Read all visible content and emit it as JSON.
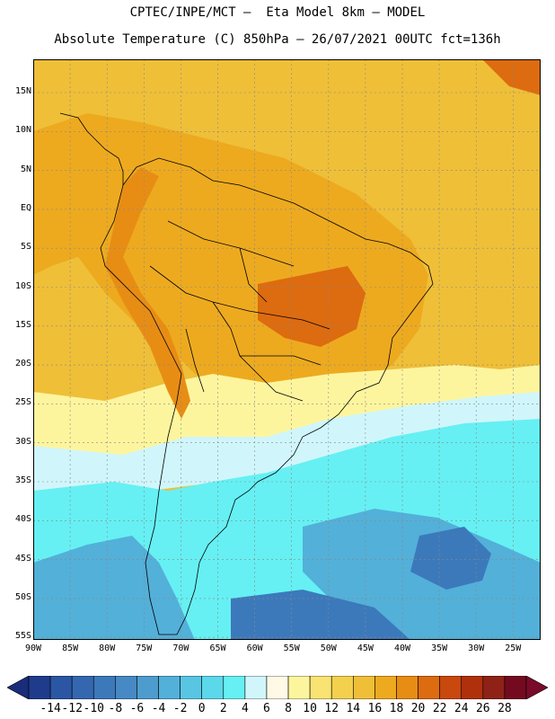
{
  "title": {
    "line1": "CPTEC/INPE/MCT —  Eta Model 8km — MODEL",
    "line2": "Absolute Temperature (C) 850hPa — 26/07/2021 00UTC fct=136h"
  },
  "lat_labels": [
    "15N",
    "10N",
    "5N",
    "EQ",
    "5S",
    "10S",
    "15S",
    "20S",
    "25S",
    "30S",
    "35S",
    "40S",
    "45S",
    "50S",
    "55S"
  ],
  "lon_labels": [
    "90W",
    "85W",
    "80W",
    "75W",
    "70W",
    "65W",
    "60W",
    "55W",
    "50W",
    "45W",
    "40W",
    "35W",
    "30W",
    "25W"
  ],
  "colorbar": {
    "labels": [
      "-14",
      "-12",
      "-10",
      "-8",
      "-6",
      "-4",
      "-2",
      "0",
      "2",
      "4",
      "6",
      "8",
      "10",
      "12",
      "14",
      "16",
      "18",
      "20",
      "22",
      "24",
      "26",
      "28"
    ],
    "colors": [
      "#1f3c8c",
      "#2a56a4",
      "#3467b0",
      "#3c79bb",
      "#4689c4",
      "#4e9cce",
      "#53b0d9",
      "#58c6e3",
      "#5bd8ea",
      "#66f0f3",
      "#d0f6fb",
      "#fff9e6",
      "#fdf59e",
      "#f9e372",
      "#f3d14e",
      "#efbf38",
      "#edaa1f",
      "#e88d14",
      "#dd6b10",
      "#c9480e",
      "#b0300c",
      "#8e2216",
      "#740a20"
    ],
    "lower_color": "#1a2d7a",
    "upper_color": "#7a0a2a"
  },
  "map_colors": {
    "warm_bg": "#efbf38",
    "warm_2": "#edaa1f",
    "warm_3": "#e88d14",
    "hot": "#dd6b10",
    "cream": "#fdf59e",
    "pale": "#d0f6fb",
    "cyan": "#66f0f3",
    "cool": "#53b0d9",
    "cold": "#4689c4",
    "colder": "#3c79bb"
  }
}
